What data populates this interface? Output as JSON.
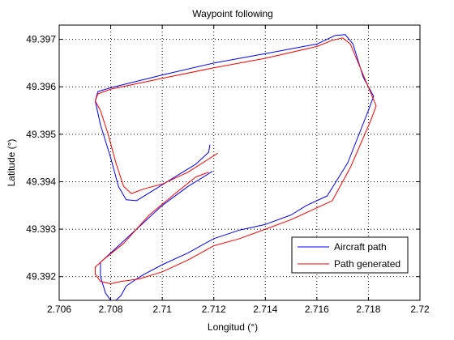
{
  "chart_data": {
    "type": "line",
    "title": "Waypoint following",
    "xlabel": "Longitud (°)",
    "ylabel": "Latitude (°)",
    "xlim": [
      2.706,
      2.72
    ],
    "ylim": [
      49.3915,
      49.3973
    ],
    "xticks": [
      2.706,
      2.708,
      2.71,
      2.712,
      2.714,
      2.716,
      2.718,
      2.72
    ],
    "xtick_labels": [
      "2.706",
      "2.708",
      "2.71",
      "2.712",
      "2.714",
      "2.716",
      "2.718",
      "2.72"
    ],
    "yticks": [
      49.392,
      49.393,
      49.394,
      49.395,
      49.396,
      49.397
    ],
    "ytick_labels": [
      "49.392",
      "49.393",
      "49.394",
      "49.395",
      "49.396",
      "49.397"
    ],
    "grid": true,
    "legend": "bottom-right",
    "series": [
      {
        "name": "Aircraft path",
        "color": "#0000ff",
        "points": [
          [
            2.71185,
            49.39478
          ],
          [
            2.7118,
            49.39462
          ],
          [
            2.7113,
            49.39437
          ],
          [
            2.7104,
            49.39407
          ],
          [
            2.7096,
            49.3938
          ],
          [
            2.709,
            49.3936
          ],
          [
            2.7086,
            49.39362
          ],
          [
            2.7083,
            49.3939
          ],
          [
            2.708,
            49.3945
          ],
          [
            2.7076,
            49.3952
          ],
          [
            2.7074,
            49.3957
          ],
          [
            2.7075,
            49.3959
          ],
          [
            2.708,
            49.39598
          ],
          [
            2.71,
            49.39625
          ],
          [
            2.712,
            49.3965
          ],
          [
            2.714,
            49.3967
          ],
          [
            2.716,
            49.3969
          ],
          [
            2.7167,
            49.39708
          ],
          [
            2.7171,
            49.3971
          ],
          [
            2.7174,
            49.3969
          ],
          [
            2.7178,
            49.3962
          ],
          [
            2.7182,
            49.3958
          ],
          [
            2.718,
            49.3955
          ],
          [
            2.7172,
            49.3944
          ],
          [
            2.7164,
            49.3937
          ],
          [
            2.7156,
            49.3935
          ],
          [
            2.715,
            49.3933
          ],
          [
            2.714,
            49.3931
          ],
          [
            2.713,
            49.39298
          ],
          [
            2.712,
            49.3928
          ],
          [
            2.711,
            49.3925
          ],
          [
            2.71,
            49.39225
          ],
          [
            2.7093,
            49.39205
          ],
          [
            2.709,
            49.39195
          ],
          [
            2.7086,
            49.3918
          ],
          [
            2.7084,
            49.3916
          ],
          [
            2.7082,
            49.3915
          ],
          [
            2.708,
            49.3915
          ],
          [
            2.7078,
            49.39165
          ],
          [
            2.7076,
            49.392
          ],
          [
            2.7076,
            49.3923
          ],
          [
            2.708,
            49.3925
          ],
          [
            2.709,
            49.393
          ],
          [
            2.71,
            49.3935
          ],
          [
            2.711,
            49.3939
          ],
          [
            2.7116,
            49.3941
          ],
          [
            2.71195,
            49.39422
          ]
        ]
      },
      {
        "name": "Path generated",
        "color": "#ff0000",
        "points": [
          [
            2.71215,
            49.3946
          ],
          [
            2.711,
            49.3942
          ],
          [
            2.71,
            49.39395
          ],
          [
            2.7093,
            49.39385
          ],
          [
            2.7088,
            49.39375
          ],
          [
            2.7085,
            49.3939
          ],
          [
            2.7082,
            49.3944
          ],
          [
            2.7079,
            49.395
          ],
          [
            2.7076,
            49.3955
          ],
          [
            2.7074,
            49.3957
          ],
          [
            2.7075,
            49.39585
          ],
          [
            2.708,
            49.39595
          ],
          [
            2.71,
            49.39618
          ],
          [
            2.712,
            49.3964
          ],
          [
            2.714,
            49.3966
          ],
          [
            2.716,
            49.39685
          ],
          [
            2.7166,
            49.39698
          ],
          [
            2.717,
            49.39703
          ],
          [
            2.7173,
            49.3969
          ],
          [
            2.7178,
            49.39625
          ],
          [
            2.7183,
            49.3956
          ],
          [
            2.7181,
            49.3953
          ],
          [
            2.7173,
            49.3943
          ],
          [
            2.7166,
            49.3936
          ],
          [
            2.716,
            49.39345
          ],
          [
            2.715,
            49.3932
          ],
          [
            2.714,
            49.393
          ],
          [
            2.713,
            49.3928
          ],
          [
            2.712,
            49.39265
          ],
          [
            2.711,
            49.39235
          ],
          [
            2.71,
            49.3921
          ],
          [
            2.7091,
            49.39195
          ],
          [
            2.7084,
            49.3919
          ],
          [
            2.708,
            49.39185
          ],
          [
            2.7076,
            49.3919
          ],
          [
            2.7074,
            49.39205
          ],
          [
            2.7074,
            49.3922
          ],
          [
            2.7077,
            49.39235
          ],
          [
            2.7085,
            49.3927
          ],
          [
            2.7095,
            49.3933
          ],
          [
            2.7105,
            49.39375
          ],
          [
            2.7113,
            49.3941
          ],
          [
            2.7118,
            49.3942
          ]
        ]
      }
    ]
  }
}
